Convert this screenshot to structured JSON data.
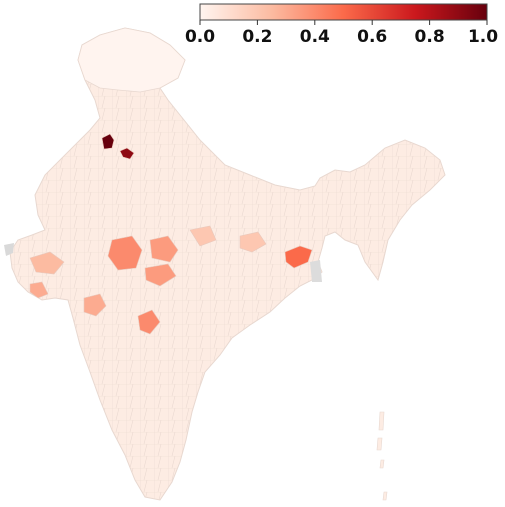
{
  "map": {
    "region": "India",
    "style": "choropleth",
    "base_fill": "#fdece3",
    "border_color": "#e8d8d0",
    "nodata_fill": "#d9d9d9"
  },
  "colorbar": {
    "colormap": "Reds",
    "min": 0.0,
    "max": 1.0,
    "tick_values": [
      0.0,
      0.2,
      0.4,
      0.6,
      0.8,
      1.0
    ],
    "tick_labels": [
      "0.0",
      "0.2",
      "0.4",
      "0.6",
      "0.8",
      "1.0"
    ],
    "stops": [
      {
        "offset": 0,
        "color": "#fff5f0"
      },
      {
        "offset": 0.25,
        "color": "#fcbba1"
      },
      {
        "offset": 0.5,
        "color": "#fb6a4a"
      },
      {
        "offset": 0.75,
        "color": "#cb181d"
      },
      {
        "offset": 1,
        "color": "#67000d"
      }
    ]
  },
  "highlighted_districts": [
    {
      "id": "punjab-1",
      "value": 1.0
    },
    {
      "id": "punjab-2",
      "value": 0.9
    },
    {
      "id": "westbengal-1",
      "value": 0.5
    },
    {
      "id": "mp-1",
      "value": 0.4
    },
    {
      "id": "mp-2",
      "value": 0.35
    },
    {
      "id": "mp-3",
      "value": 0.35
    },
    {
      "id": "maharashtra-1",
      "value": 0.4
    },
    {
      "id": "maharashtra-2",
      "value": 0.3
    },
    {
      "id": "gujarat-1",
      "value": 0.3
    },
    {
      "id": "gujarat-2",
      "value": 0.25
    },
    {
      "id": "chhattisgarh-1",
      "value": 0.2
    },
    {
      "id": "jharkhand-1",
      "value": 0.2
    }
  ]
}
